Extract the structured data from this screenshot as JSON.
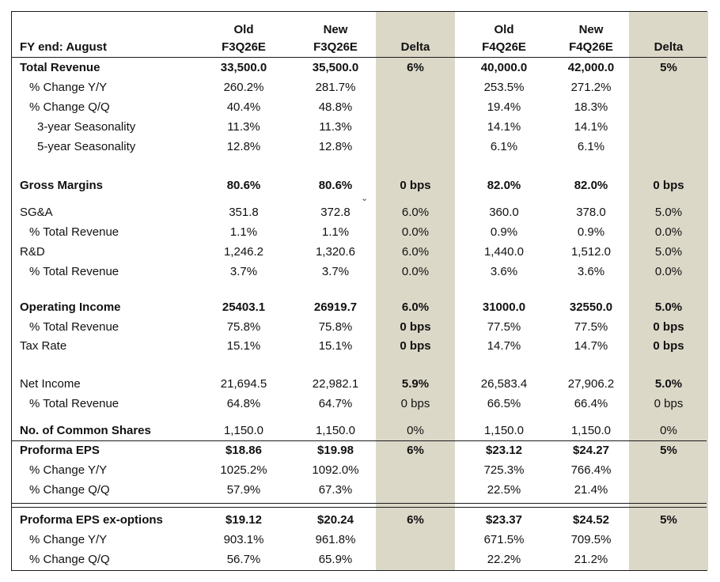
{
  "header": {
    "group1_old": "Old",
    "group1_new": "New",
    "group2_old": "Old",
    "group2_new": "New",
    "fy_label": "FY end: August",
    "col1": "F3Q26E",
    "col2": "F3Q26E",
    "col3": "Delta",
    "col4": "F4Q26E",
    "col5": "F4Q26E",
    "col6": "Delta"
  },
  "rows": [
    {
      "label": "Total Revenue",
      "v": [
        "33,500.0",
        "35,500.0",
        "6%",
        "40,000.0",
        "42,000.0",
        "5%"
      ]
    },
    {
      "label": "% Change Y/Y",
      "v": [
        "260.2%",
        "281.7%",
        "",
        "253.5%",
        "271.2%",
        ""
      ]
    },
    {
      "label": "% Change Q/Q",
      "v": [
        "40.4%",
        "48.8%",
        "",
        "19.4%",
        "18.3%",
        ""
      ]
    },
    {
      "label": "3-year Seasonality",
      "v": [
        "11.3%",
        "11.3%",
        "",
        "14.1%",
        "14.1%",
        ""
      ]
    },
    {
      "label": "5-year Seasonality",
      "v": [
        "12.8%",
        "12.8%",
        "",
        "6.1%",
        "6.1%",
        ""
      ]
    },
    {
      "label": "Gross Margins",
      "v": [
        "80.6%",
        "80.6%",
        "0 bps",
        "82.0%",
        "82.0%",
        "0 bps"
      ]
    },
    {
      "label": "SG&A",
      "v": [
        "351.8",
        "372.8",
        "6.0%",
        "360.0",
        "378.0",
        "5.0%"
      ]
    },
    {
      "label": "% Total Revenue",
      "v": [
        "1.1%",
        "1.1%",
        "0.0%",
        "0.9%",
        "0.9%",
        "0.0%"
      ]
    },
    {
      "label": "R&D",
      "v": [
        "1,246.2",
        "1,320.6",
        "6.0%",
        "1,440.0",
        "1,512.0",
        "5.0%"
      ]
    },
    {
      "label": "% Total Revenue",
      "v": [
        "3.7%",
        "3.7%",
        "0.0%",
        "3.6%",
        "3.6%",
        "0.0%"
      ]
    },
    {
      "label": "Operating Income",
      "v": [
        "25403.1",
        "26919.7",
        "6.0%",
        "31000.0",
        "32550.0",
        "5.0%"
      ]
    },
    {
      "label": "% Total Revenue",
      "v": [
        "75.8%",
        "75.8%",
        "0 bps",
        "77.5%",
        "77.5%",
        "0 bps"
      ]
    },
    {
      "label": "Tax Rate",
      "v": [
        "15.1%",
        "15.1%",
        "0 bps",
        "14.7%",
        "14.7%",
        "0 bps"
      ]
    },
    {
      "label": "Net Income",
      "v": [
        "21,694.5",
        "22,982.1",
        "5.9%",
        "26,583.4",
        "27,906.2",
        "5.0%"
      ]
    },
    {
      "label": "% Total Revenue",
      "v": [
        "64.8%",
        "64.7%",
        "0 bps",
        "66.5%",
        "66.4%",
        "0 bps"
      ]
    },
    {
      "label": "No. of Common Shares",
      "v": [
        "1,150.0",
        "1,150.0",
        "0%",
        "1,150.0",
        "1,150.0",
        "0%"
      ]
    },
    {
      "label": "Proforma EPS",
      "v": [
        "$18.86",
        "$19.98",
        "6%",
        "$23.12",
        "$24.27",
        "5%"
      ]
    },
    {
      "label": "% Change Y/Y",
      "v": [
        "1025.2%",
        "1092.0%",
        "",
        "725.3%",
        "766.4%",
        ""
      ]
    },
    {
      "label": "% Change Q/Q",
      "v": [
        "57.9%",
        "67.3%",
        "",
        "22.5%",
        "21.4%",
        ""
      ]
    },
    {
      "label": "Proforma EPS ex-options",
      "v": [
        "$19.12",
        "$20.24",
        "6%",
        "$23.37",
        "$24.52",
        "5%"
      ]
    },
    {
      "label": "% Change Y/Y",
      "v": [
        "903.1%",
        "961.8%",
        "",
        "671.5%",
        "709.5%",
        ""
      ]
    },
    {
      "label": "% Change Q/Q",
      "v": [
        "56.7%",
        "65.9%",
        "",
        "22.2%",
        "21.2%",
        ""
      ]
    }
  ],
  "colors": {
    "delta_band": "#dcd8c8",
    "border": "#1a1a1a"
  }
}
